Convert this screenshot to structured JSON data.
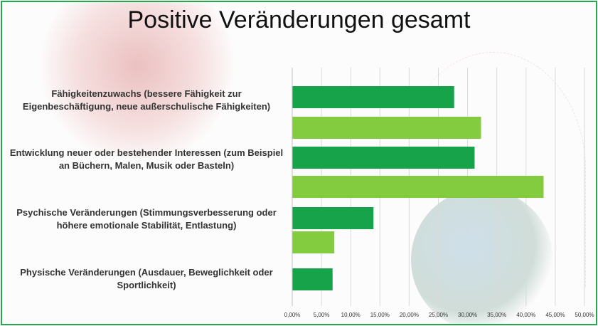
{
  "colors": {
    "dark_green": "#16a34a",
    "light_green": "#84cc3f",
    "frame": "#22a84a"
  },
  "chart_data": {
    "type": "bar",
    "orientation": "horizontal",
    "title": "Positive Veränderungen gesamt",
    "categories": [
      "Fähigkeitenzuwachs (bessere Fähigkeit zur Eigenbeschäftigung, neue außerschulische Fähigkeiten)",
      "Entwicklung neuer oder bestehender Interessen (zum Beispiel an Büchern, Malen, Musik oder Basteln)",
      "Psychische Veränderungen (Stimmungsverbesserung oder höhere emotionale Stabilität, Entlastung)",
      "Physische Veränderungen (Ausdauer, Beweglichkeit oder Sportlichkeit)"
    ],
    "series": [
      {
        "values": [
          27.7,
          31.2,
          13.9,
          6.9
        ]
      },
      {
        "values": [
          32.3,
          43.0,
          7.2,
          null
        ]
      }
    ],
    "xlim": [
      0,
      50
    ],
    "xticks": [
      "0,00%",
      "5,00%",
      "10,00%",
      "15,00%",
      "20,00%",
      "25,00%",
      "30,00%",
      "35,00%",
      "40,00%",
      "45,00%",
      "50,00%"
    ],
    "grid": true,
    "legend": "none"
  }
}
